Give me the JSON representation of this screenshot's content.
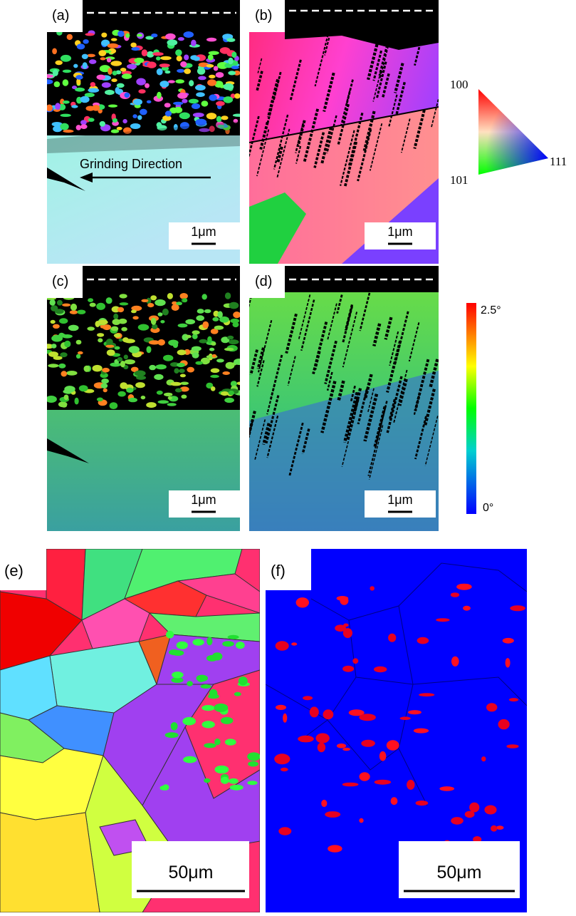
{
  "panels": [
    {
      "label": "(a)",
      "scale_bar": "1μm",
      "annotation": "Grinding Direction"
    },
    {
      "label": "(b)",
      "scale_bar": "1μm"
    },
    {
      "label": "(c)",
      "scale_bar": "1μm"
    },
    {
      "label": "(d)",
      "scale_bar": "1μm"
    },
    {
      "label": "(e)",
      "scale_bar": "50μm"
    },
    {
      "label": "(f)",
      "scale_bar": "50μm"
    }
  ],
  "ipf_legend": {
    "labels": [
      "100",
      "111",
      "101"
    ]
  },
  "color_bar": {
    "max_label": "2.5°",
    "min_label": "0°"
  }
}
